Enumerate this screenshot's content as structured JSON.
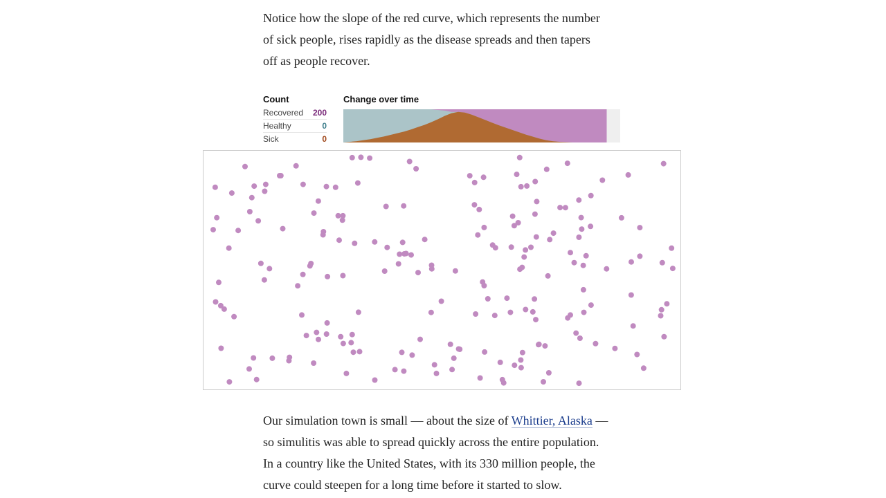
{
  "text": {
    "para_top_lines": [
      "Notice how the slope of the red curve, which represents the number",
      "of sick people, rises rapidly as the disease spreads and then tapers",
      "off as people recover."
    ],
    "para_bottom_line1_pre": "Our simulation town is small — about the size of ",
    "para_bottom_link": "Whittier, Alaska",
    "para_bottom_line1_post": " —",
    "para_bottom_lines_rest": [
      "so simulitis was able to spread quickly across the entire population.",
      "In a country like the United States, with its 330 million people, the",
      "curve could steepen for a long time before it started to slow."
    ]
  },
  "counts": {
    "header": "Count",
    "rows": [
      {
        "label": "Recovered",
        "value": "200",
        "color": "#7a2a7a"
      },
      {
        "label": "Healthy",
        "value": "0",
        "color": "#3f7f8c"
      },
      {
        "label": "Sick",
        "value": "0",
        "color": "#a0481c"
      }
    ]
  },
  "chart_data": {
    "type": "area",
    "title": "Change over time",
    "series_colors": {
      "healthy": "#abc4c8",
      "sick": "#b06a32",
      "recovered": "#c08ac0"
    },
    "remaining_color": "#efefef",
    "steps": 41,
    "elapsed_steps": 39,
    "sick_fraction": [
      0.0,
      0.02,
      0.04,
      0.07,
      0.1,
      0.14,
      0.18,
      0.23,
      0.28,
      0.33,
      0.39,
      0.46,
      0.53,
      0.61,
      0.7,
      0.8,
      0.88,
      0.92,
      0.9,
      0.84,
      0.76,
      0.68,
      0.6,
      0.52,
      0.45,
      0.38,
      0.31,
      0.24,
      0.18,
      0.12,
      0.07,
      0.04,
      0.02,
      0.01,
      0.0,
      0.0,
      0.0,
      0.0,
      0.0,
      0.0
    ],
    "recovered_fraction": [
      0.0,
      0.0,
      0.0,
      0.0,
      0.0,
      0.0,
      0.0,
      0.0,
      0.0,
      0.0,
      0.0,
      0.0,
      0.0,
      0.0,
      0.02,
      0.04,
      0.08,
      0.08,
      0.1,
      0.16,
      0.24,
      0.32,
      0.4,
      0.48,
      0.55,
      0.62,
      0.69,
      0.76,
      0.82,
      0.88,
      0.93,
      0.96,
      0.98,
      0.99,
      1.0,
      1.0,
      1.0,
      1.0,
      1.0,
      1.0
    ]
  },
  "simulation": {
    "dot_color": "#c08ac0",
    "population": 200,
    "seed": 12345
  }
}
